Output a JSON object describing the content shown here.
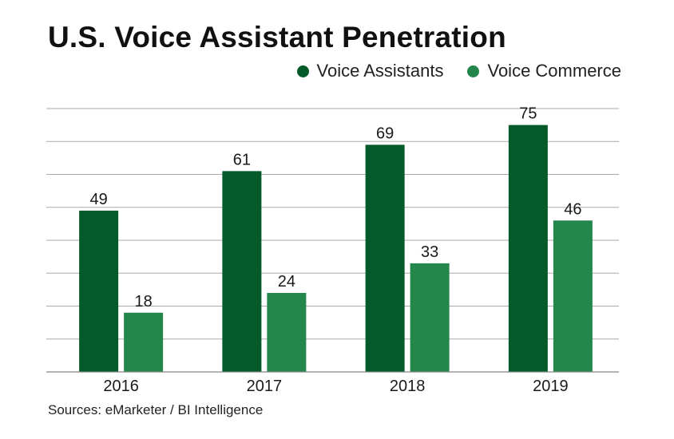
{
  "chart_data": {
    "type": "bar",
    "title": "U.S. Voice Assistant Penetration",
    "categories": [
      "2016",
      "2017",
      "2018",
      "2019"
    ],
    "series": [
      {
        "name": "Voice Assistants",
        "values": [
          49,
          61,
          69,
          75
        ],
        "color": "#055a2a"
      },
      {
        "name": "Voice Commerce",
        "values": [
          18,
          24,
          33,
          46
        ],
        "color": "#23874c"
      }
    ],
    "xlabel": "",
    "ylabel": "",
    "ylim": [
      0,
      80
    ],
    "grid": true,
    "legend_position": "top-right",
    "source": "Sources: eMarketer / BI Intelligence"
  }
}
